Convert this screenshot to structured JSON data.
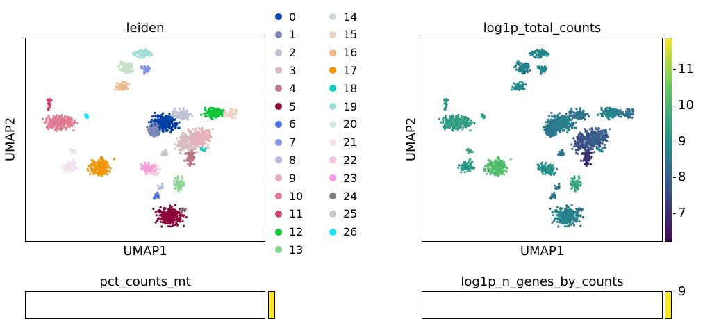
{
  "chart_data": [
    {
      "type": "scatter",
      "title": "leiden",
      "xlabel": "UMAP1",
      "ylabel": "UMAP2",
      "legend_position": "right",
      "legend": [
        {
          "label": "0",
          "color": "#023fa5"
        },
        {
          "label": "1",
          "color": "#7d87b9"
        },
        {
          "label": "2",
          "color": "#bec1d4"
        },
        {
          "label": "3",
          "color": "#d6bcc0"
        },
        {
          "label": "4",
          "color": "#bb7784"
        },
        {
          "label": "5",
          "color": "#8e063b"
        },
        {
          "label": "6",
          "color": "#4a6fe3"
        },
        {
          "label": "7",
          "color": "#8595e1"
        },
        {
          "label": "8",
          "color": "#b5bbe3"
        },
        {
          "label": "9",
          "color": "#e6afb9"
        },
        {
          "label": "10",
          "color": "#e07b91"
        },
        {
          "label": "11",
          "color": "#d33f6a"
        },
        {
          "label": "12",
          "color": "#11c638"
        },
        {
          "label": "13",
          "color": "#8dd593"
        },
        {
          "label": "14",
          "color": "#c6dec7"
        },
        {
          "label": "15",
          "color": "#ead3c6"
        },
        {
          "label": "16",
          "color": "#f0b98d"
        },
        {
          "label": "17",
          "color": "#ef9708"
        },
        {
          "label": "18",
          "color": "#0fcfc0"
        },
        {
          "label": "19",
          "color": "#9cded6"
        },
        {
          "label": "20",
          "color": "#d5eae7"
        },
        {
          "label": "21",
          "color": "#f3e1eb"
        },
        {
          "label": "22",
          "color": "#f6c4e1"
        },
        {
          "label": "23",
          "color": "#f79cd4"
        },
        {
          "label": "24",
          "color": "#7f7f7f"
        },
        {
          "label": "25",
          "color": "#c7c7c7"
        },
        {
          "label": "26",
          "color": "#1ce6ff"
        }
      ]
    },
    {
      "type": "scatter",
      "title": "log1p_total_counts",
      "xlabel": "UMAP1",
      "ylabel": "UMAP2",
      "colorbar": {
        "ticks": [
          "7",
          "8",
          "9",
          "10",
          "11"
        ],
        "range": [
          6.2,
          11.9
        ],
        "colormap": [
          "#440154",
          "#3b528b",
          "#21908d",
          "#5dc962",
          "#fde725"
        ]
      }
    },
    {
      "type": "scatter",
      "title": "pct_counts_mt"
    },
    {
      "type": "scatter",
      "title": "log1p_n_genes_by_counts",
      "colorbar": {
        "ticks": [
          "9"
        ]
      }
    }
  ]
}
